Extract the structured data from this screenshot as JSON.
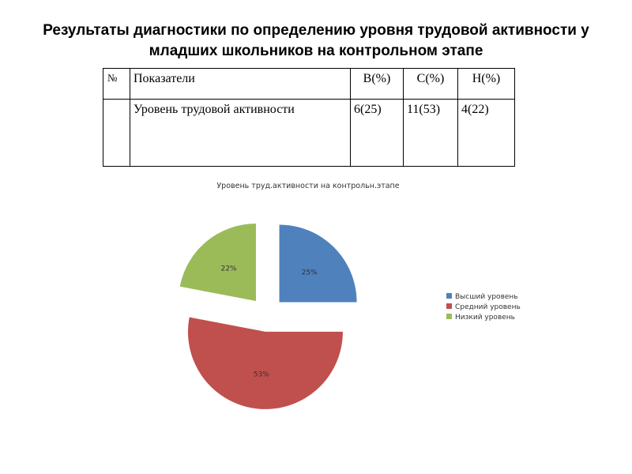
{
  "title_line1": "Результаты диагностики по определению уровня трудовой активности у",
  "title_line2": "младших школьников на контрольном этапе",
  "table": {
    "headers": [
      "№",
      "Показатели",
      "В(%)",
      "С(%)",
      "Н(%)"
    ],
    "row": [
      "",
      "Уровень трудовой активности",
      "6(25)",
      "11(53)",
      "4(22)"
    ]
  },
  "chart_data": {
    "type": "pie",
    "title": "Уровень труд.активности на контрольн.этапе",
    "categories": [
      "Высший уровень",
      "Средний уровень",
      "Низкий уровень"
    ],
    "values": [
      25,
      53,
      22
    ],
    "labels": [
      "25%",
      "53%",
      "22%"
    ],
    "colors": [
      "#4f81bd",
      "#c0504d",
      "#9bbb59"
    ],
    "exploded": true,
    "legend": "right"
  }
}
